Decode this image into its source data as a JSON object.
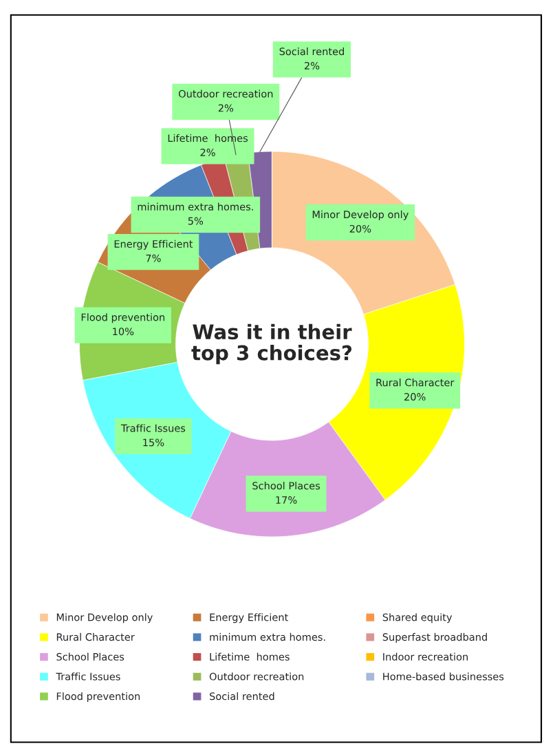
{
  "chart_data": {
    "type": "donut",
    "title": "Was it in their top 3 choices?",
    "categories": [
      "Minor Develop only",
      "Rural Character",
      "School Places",
      "Traffic Issues",
      "Flood prevention",
      "Energy Efficient",
      "minimum extra homes.",
      "Lifetime  homes",
      "Outdoor recreation",
      "Social rented",
      "Shared equity",
      "Superfast broadband",
      "Indoor recreation",
      "Home-based businesses"
    ],
    "values": [
      20,
      20,
      17,
      15,
      10,
      7,
      5,
      2,
      2,
      2,
      0,
      0,
      0,
      0
    ],
    "colors": [
      "#fcc898",
      "#ffff00",
      "#dca0e0",
      "#66ffff",
      "#92d050",
      "#c87a3a",
      "#4f81bd",
      "#c0504d",
      "#9bbb59",
      "#8064a2",
      "#f79646",
      "#d99694",
      "#ffc000",
      "#a6b9db"
    ],
    "value_labels": [
      "20%",
      "20%",
      "17%",
      "15%",
      "10%",
      "7%",
      "5%",
      "2%",
      "2%",
      "2%",
      null,
      null,
      null,
      null
    ],
    "legend": "bottom"
  }
}
